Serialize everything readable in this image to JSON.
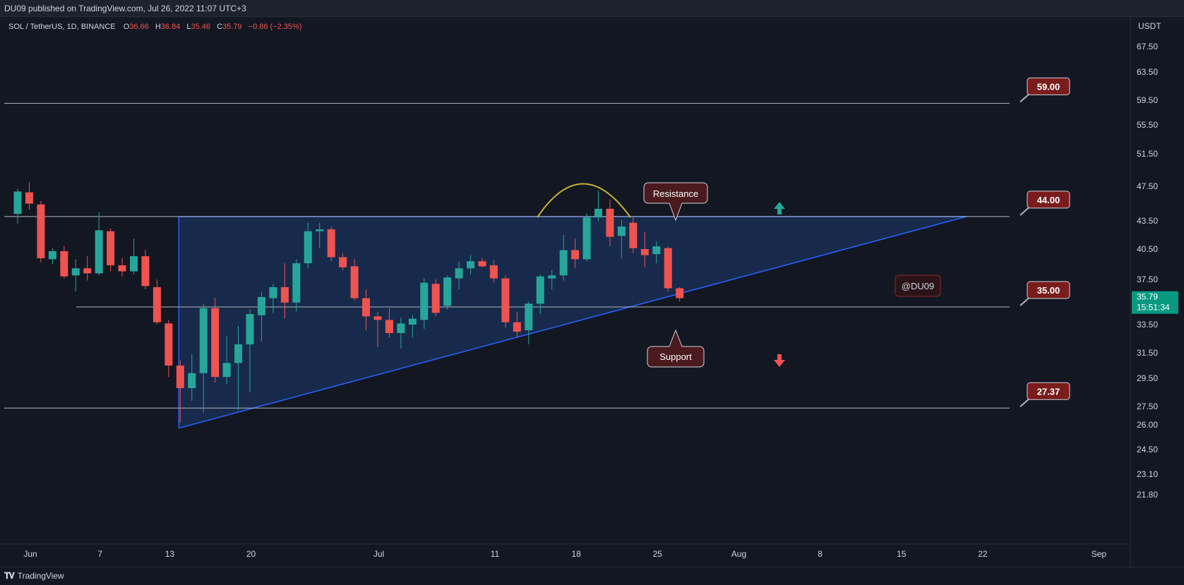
{
  "header": {
    "publisher_line": "DU09 published on TradingView.com, Jul 26, 2022 11:07 UTC+3"
  },
  "footer": {
    "brand_label": "TradingView",
    "logo_icon": "tradingview-logo-icon"
  },
  "chart_data": {
    "type": "candlestick",
    "legend": {
      "symbol": "SOL / TetherUS, 1D, BINANCE",
      "o_label": "O",
      "o_value": "36.66",
      "h_label": "H",
      "h_value": "36.84",
      "l_label": "L",
      "l_value": "35.46",
      "c_label": "C",
      "c_value": "35.79",
      "change": "−0.86 (−2.35%)"
    },
    "currency_label": "USDT",
    "y_ticks": [
      "67.50",
      "63.50",
      "59.50",
      "55.50",
      "51.50",
      "47.50",
      "43.50",
      "40.50",
      "37.50",
      "35.00",
      "33.50",
      "31.50",
      "29.50",
      "27.50",
      "26.00",
      "24.50",
      "23.10",
      "21.80"
    ],
    "x_ticks": [
      "Jun",
      "7",
      "13",
      "20",
      "Jul",
      "11",
      "18",
      "25",
      "Aug",
      "8",
      "15",
      "22",
      "Sep"
    ],
    "last_price": {
      "value": 35.79,
      "label": "35.79",
      "countdown": "15:51:34"
    },
    "candles": [
      {
        "date": "2022-06-01",
        "o": 44.3,
        "h": 47.2,
        "l": 43.2,
        "c": 46.9
      },
      {
        "date": "2022-06-02",
        "o": 46.8,
        "h": 48.0,
        "l": 44.8,
        "c": 45.5
      },
      {
        "date": "2022-06-03",
        "o": 45.4,
        "h": 45.8,
        "l": 39.2,
        "c": 39.6
      },
      {
        "date": "2022-06-04",
        "o": 39.5,
        "h": 40.6,
        "l": 39.0,
        "c": 40.3
      },
      {
        "date": "2022-06-05",
        "o": 40.3,
        "h": 40.8,
        "l": 37.6,
        "c": 37.8
      },
      {
        "date": "2022-06-06",
        "o": 37.9,
        "h": 39.5,
        "l": 36.4,
        "c": 38.6
      },
      {
        "date": "2022-06-07",
        "o": 38.6,
        "h": 39.8,
        "l": 37.4,
        "c": 38.1
      },
      {
        "date": "2022-06-08",
        "o": 38.1,
        "h": 44.5,
        "l": 37.9,
        "c": 42.5
      },
      {
        "date": "2022-06-09",
        "o": 42.4,
        "h": 42.7,
        "l": 38.3,
        "c": 38.9
      },
      {
        "date": "2022-06-10",
        "o": 38.9,
        "h": 39.6,
        "l": 37.8,
        "c": 38.3
      },
      {
        "date": "2022-06-11",
        "o": 38.3,
        "h": 41.6,
        "l": 38.0,
        "c": 39.8
      },
      {
        "date": "2022-06-12",
        "o": 39.8,
        "h": 40.4,
        "l": 36.6,
        "c": 36.9
      },
      {
        "date": "2022-06-13",
        "o": 36.8,
        "h": 37.5,
        "l": 33.5,
        "c": 33.7
      },
      {
        "date": "2022-06-14",
        "o": 33.6,
        "h": 33.9,
        "l": 29.6,
        "c": 30.5
      },
      {
        "date": "2022-06-15",
        "o": 30.5,
        "h": 30.9,
        "l": 26.2,
        "c": 28.8
      },
      {
        "date": "2022-06-16",
        "o": 28.8,
        "h": 31.4,
        "l": 27.9,
        "c": 29.9
      },
      {
        "date": "2022-06-17",
        "o": 29.9,
        "h": 35.3,
        "l": 27.0,
        "c": 34.9
      },
      {
        "date": "2022-06-18",
        "o": 34.9,
        "h": 35.8,
        "l": 29.2,
        "c": 29.6
      },
      {
        "date": "2022-06-19",
        "o": 29.6,
        "h": 32.7,
        "l": 29.1,
        "c": 30.7
      },
      {
        "date": "2022-06-20",
        "o": 30.7,
        "h": 33.4,
        "l": 27.2,
        "c": 32.1
      },
      {
        "date": "2022-06-21",
        "o": 32.1,
        "h": 34.8,
        "l": 28.5,
        "c": 34.4
      },
      {
        "date": "2022-06-22",
        "o": 34.3,
        "h": 36.4,
        "l": 32.3,
        "c": 35.9
      },
      {
        "date": "2022-06-23",
        "o": 35.8,
        "h": 37.1,
        "l": 34.5,
        "c": 36.8
      },
      {
        "date": "2022-06-24",
        "o": 36.8,
        "h": 39.1,
        "l": 34.0,
        "c": 35.4
      },
      {
        "date": "2022-06-25",
        "o": 35.4,
        "h": 39.5,
        "l": 34.6,
        "c": 39.1
      },
      {
        "date": "2022-06-26",
        "o": 39.1,
        "h": 43.3,
        "l": 38.6,
        "c": 42.4
      },
      {
        "date": "2022-06-27",
        "o": 42.4,
        "h": 43.3,
        "l": 40.6,
        "c": 42.6
      },
      {
        "date": "2022-06-28",
        "o": 42.6,
        "h": 42.9,
        "l": 39.3,
        "c": 39.7
      },
      {
        "date": "2022-06-29",
        "o": 39.7,
        "h": 40.1,
        "l": 38.4,
        "c": 38.7
      },
      {
        "date": "2022-06-30",
        "o": 38.8,
        "h": 39.5,
        "l": 35.6,
        "c": 35.8
      },
      {
        "date": "2022-07-01",
        "o": 35.8,
        "h": 36.6,
        "l": 33.1,
        "c": 34.2
      },
      {
        "date": "2022-07-02",
        "o": 34.2,
        "h": 34.6,
        "l": 31.9,
        "c": 33.9
      },
      {
        "date": "2022-07-03",
        "o": 33.9,
        "h": 34.9,
        "l": 32.6,
        "c": 32.9
      },
      {
        "date": "2022-07-04",
        "o": 32.9,
        "h": 34.1,
        "l": 31.8,
        "c": 33.6
      },
      {
        "date": "2022-07-05",
        "o": 33.5,
        "h": 34.3,
        "l": 32.6,
        "c": 34.0
      },
      {
        "date": "2022-07-06",
        "o": 33.9,
        "h": 37.6,
        "l": 33.2,
        "c": 37.2
      },
      {
        "date": "2022-07-07",
        "o": 37.1,
        "h": 37.5,
        "l": 34.2,
        "c": 34.5
      },
      {
        "date": "2022-07-08",
        "o": 35.1,
        "h": 37.9,
        "l": 34.8,
        "c": 37.7
      },
      {
        "date": "2022-07-09",
        "o": 37.6,
        "h": 39.3,
        "l": 36.6,
        "c": 38.6
      },
      {
        "date": "2022-07-10",
        "o": 38.6,
        "h": 39.9,
        "l": 38.0,
        "c": 39.3
      },
      {
        "date": "2022-07-11",
        "o": 39.3,
        "h": 39.6,
        "l": 38.7,
        "c": 38.8
      },
      {
        "date": "2022-07-12",
        "o": 38.9,
        "h": 39.4,
        "l": 37.2,
        "c": 37.6
      },
      {
        "date": "2022-07-13",
        "o": 37.6,
        "h": 37.9,
        "l": 33.3,
        "c": 33.7
      },
      {
        "date": "2022-07-14",
        "o": 33.7,
        "h": 34.6,
        "l": 32.6,
        "c": 33.0
      },
      {
        "date": "2022-07-15",
        "o": 33.1,
        "h": 35.5,
        "l": 32.1,
        "c": 35.3
      },
      {
        "date": "2022-07-16",
        "o": 35.3,
        "h": 38.0,
        "l": 34.4,
        "c": 37.8
      },
      {
        "date": "2022-07-17",
        "o": 37.6,
        "h": 38.4,
        "l": 36.6,
        "c": 37.9
      },
      {
        "date": "2022-07-18",
        "o": 37.9,
        "h": 42.0,
        "l": 37.4,
        "c": 40.4
      },
      {
        "date": "2022-07-19",
        "o": 40.4,
        "h": 41.6,
        "l": 38.6,
        "c": 39.5
      },
      {
        "date": "2022-07-20",
        "o": 39.5,
        "h": 44.4,
        "l": 39.3,
        "c": 43.9
      },
      {
        "date": "2022-07-21",
        "o": 43.9,
        "h": 47.0,
        "l": 43.5,
        "c": 44.9
      },
      {
        "date": "2022-07-22",
        "o": 44.9,
        "h": 46.0,
        "l": 40.8,
        "c": 41.8
      },
      {
        "date": "2022-07-23",
        "o": 41.9,
        "h": 43.6,
        "l": 39.6,
        "c": 42.9
      },
      {
        "date": "2022-07-24",
        "o": 43.3,
        "h": 43.9,
        "l": 40.1,
        "c": 40.6
      },
      {
        "date": "2022-07-25",
        "o": 40.5,
        "h": 42.3,
        "l": 38.7,
        "c": 39.9
      },
      {
        "date": "2022-07-26",
        "o": 40.0,
        "h": 41.3,
        "l": 39.1,
        "c": 40.8
      },
      {
        "date": "2022-07-27",
        "o": 40.6,
        "h": 40.8,
        "l": 36.4,
        "c": 36.7
      },
      {
        "date": "2022-07-28",
        "o": 36.7,
        "h": 36.8,
        "l": 35.5,
        "c": 35.8
      }
    ],
    "horizontal_levels": [
      {
        "value": 59.0,
        "label": "59.00"
      },
      {
        "value": 44.0,
        "label": "44.00"
      },
      {
        "value": 35.0,
        "label": "35.00"
      },
      {
        "value": 27.37,
        "label": "27.37"
      }
    ],
    "annotations": {
      "resistance_label": "Resistance",
      "support_label": "Support",
      "watermark_label": "@DU09"
    },
    "colors": {
      "background": "#131722",
      "up": "#26a69a",
      "down": "#ef5350",
      "triangle_fill": "#1e3a6e",
      "triangle_stroke": "#2962ff",
      "arc": "#c9b037",
      "level_line": "#b2b5be",
      "label_bg": "#7a1c1c",
      "last_price_bg": "#089981"
    },
    "grid": false
  }
}
